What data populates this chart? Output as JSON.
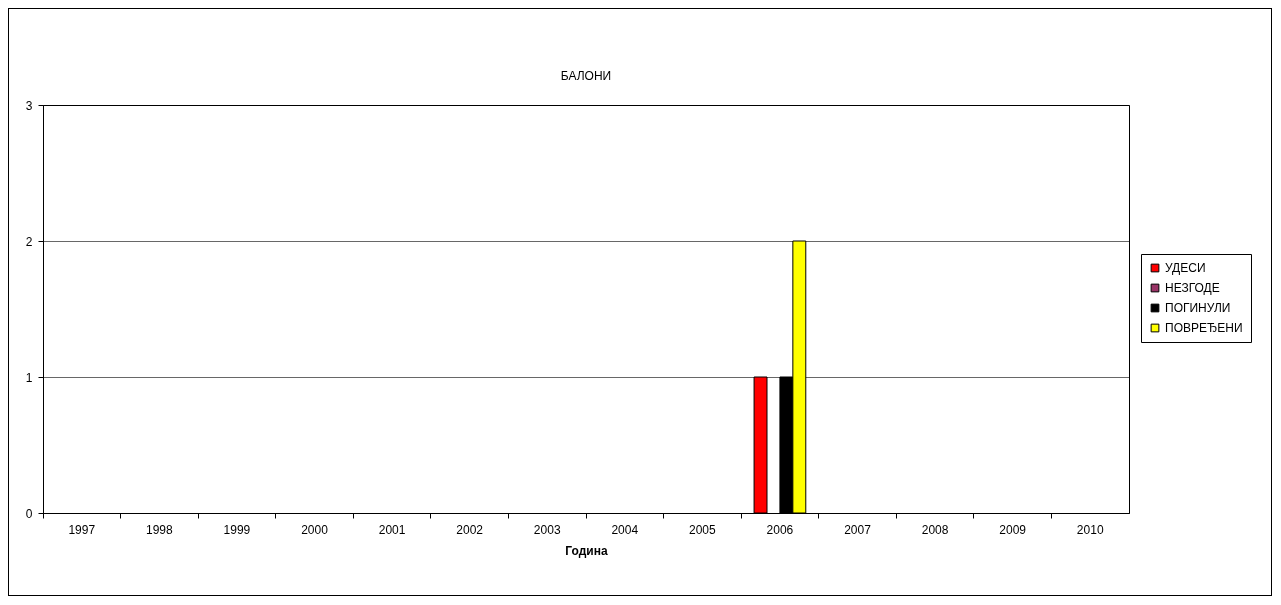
{
  "chart_data": {
    "type": "bar",
    "title": "БАЛОНИ",
    "xlabel": "Година",
    "categories": [
      "1997",
      "1998",
      "1999",
      "2000",
      "2001",
      "2002",
      "2003",
      "2004",
      "2005",
      "2006",
      "2007",
      "2008",
      "2009",
      "2010"
    ],
    "series": [
      {
        "name": "УДЕСИ",
        "color": "#ff0000",
        "values": [
          0,
          0,
          0,
          0,
          0,
          0,
          0,
          0,
          0,
          1,
          0,
          0,
          0,
          0
        ]
      },
      {
        "name": "НЕЗГОДЕ",
        "color": "#993366",
        "values": [
          0,
          0,
          0,
          0,
          0,
          0,
          0,
          0,
          0,
          0,
          0,
          0,
          0,
          0
        ]
      },
      {
        "name": "ПОГИНУЛИ",
        "color": "#000000",
        "values": [
          0,
          0,
          0,
          0,
          0,
          0,
          0,
          0,
          0,
          1,
          0,
          0,
          0,
          0
        ]
      },
      {
        "name": "ПОВРЕЂЕНИ",
        "color": "#ffff00",
        "values": [
          0,
          0,
          0,
          0,
          0,
          0,
          0,
          0,
          0,
          2,
          0,
          0,
          0,
          0
        ]
      }
    ],
    "ylim": [
      0,
      3
    ],
    "yticks": [
      0,
      1,
      2,
      3
    ],
    "grid": "y",
    "legend": "right"
  }
}
